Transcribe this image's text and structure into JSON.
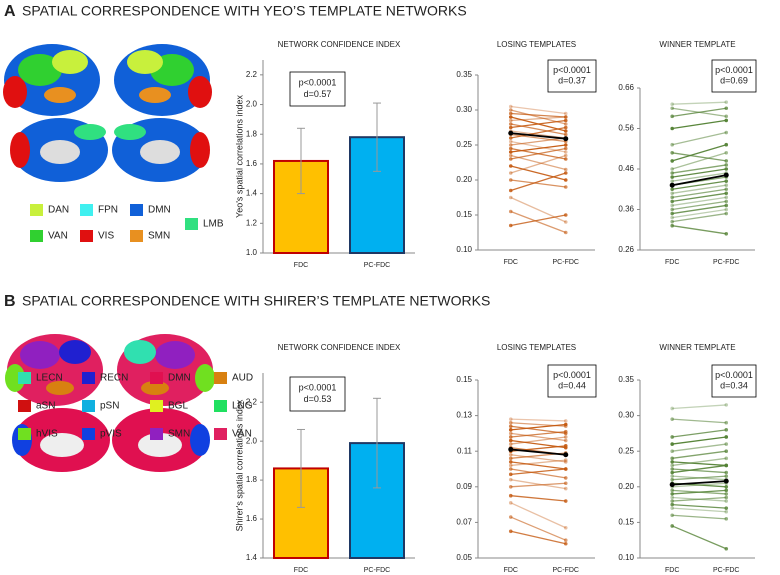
{
  "panels": [
    {
      "letter": "A",
      "title": "SPATIAL CORRESPONDENCE WITH YEO’S TEMPLATE NETWORKS",
      "legend": [
        {
          "name": "DAN",
          "color": "#c8f03c"
        },
        {
          "name": "FPN",
          "color": "#40f0f0"
        },
        {
          "name": "DMN",
          "color": "#1060d8"
        },
        {
          "name": "LMB",
          "color": "#30e080"
        },
        {
          "name": "VAN",
          "color": "#30d030"
        },
        {
          "name": "VIS",
          "color": "#e01010"
        },
        {
          "name": "SMN",
          "color": "#e89020"
        }
      ]
    },
    {
      "letter": "B",
      "title": "SPATIAL CORRESPONDENCE WITH SHIRER’S TEMPLATE NETWORKS",
      "legend": [
        {
          "name": "LECN",
          "color": "#30e0b0"
        },
        {
          "name": "RECN",
          "color": "#2020d0"
        },
        {
          "name": "DMN",
          "color": "#e01050"
        },
        {
          "name": "AUD",
          "color": "#d88010"
        },
        {
          "name": "aSN",
          "color": "#d01010"
        },
        {
          "name": "pSN",
          "color": "#10b0e0"
        },
        {
          "name": "BGL",
          "color": "#e0f020"
        },
        {
          "name": "LNG",
          "color": "#20e060"
        },
        {
          "name": "hVIS",
          "color": "#70e020"
        },
        {
          "name": "pVIS",
          "color": "#1040e0"
        },
        {
          "name": "SMN",
          "color": "#9020c0"
        },
        {
          "name": "VAN",
          "color": "#e02060"
        }
      ]
    }
  ],
  "chart_data": [
    {
      "type": "bar",
      "title": "NETWORK CONFIDENCE INDEX",
      "ylabel": "Yeo's spatial correlations index",
      "categories": [
        "FDC",
        "PC-FDC"
      ],
      "values": [
        1.62,
        1.78
      ],
      "errors": [
        0.22,
        0.23
      ],
      "colors": [
        "#ffc000",
        "#00b0f0"
      ],
      "edge_colors": [
        "#c00000",
        "#1f3864"
      ],
      "ylim": [
        1.0,
        2.3
      ],
      "yticks": [
        {
          "value": 1.0,
          "label": "1.0"
        },
        1.2,
        1.4,
        1.6,
        1.8,
        {
          "value": 2.0,
          "label": "2.0"
        },
        2.2
      ],
      "annotation": [
        "p<0.0001",
        "d=0.57"
      ]
    },
    {
      "type": "line",
      "title": "LOSING TEMPLATES",
      "categories": [
        "FDC",
        "PC-FDC"
      ],
      "color": "#c55a11",
      "mean_color": "#000000",
      "pairs": [
        [
          0.305,
          0.295
        ],
        [
          0.3,
          0.28
        ],
        [
          0.295,
          0.29
        ],
        [
          0.29,
          0.27
        ],
        [
          0.285,
          0.29
        ],
        [
          0.28,
          0.265
        ],
        [
          0.275,
          0.285
        ],
        [
          0.27,
          0.26
        ],
        [
          0.265,
          0.255
        ],
        [
          0.26,
          0.275
        ],
        [
          0.255,
          0.24
        ],
        [
          0.25,
          0.26
        ],
        [
          0.245,
          0.23
        ],
        [
          0.24,
          0.25
        ],
        [
          0.235,
          0.215
        ],
        [
          0.23,
          0.245
        ],
        [
          0.22,
          0.2
        ],
        [
          0.21,
          0.235
        ],
        [
          0.2,
          0.19
        ],
        [
          0.185,
          0.21
        ],
        [
          0.175,
          0.14
        ],
        [
          0.155,
          0.125
        ],
        [
          0.135,
          0.15
        ]
      ],
      "mean": [
        0.267,
        0.259
      ],
      "ylim": [
        0.1,
        0.35
      ],
      "yticks": [
        {
          "value": 0.1,
          "label": "0.10"
        },
        0.15,
        {
          "value": 0.2,
          "label": "0.20"
        },
        0.25,
        {
          "value": 0.3,
          "label": "0.30"
        },
        0.35
      ],
      "annotation": [
        "p<0.0001",
        "d=0.37"
      ]
    },
    {
      "type": "line",
      "title": "WINNER TEMPLATE",
      "categories": [
        "FDC",
        "PC-FDC"
      ],
      "color": "#548235",
      "mean_color": "#000000",
      "pairs": [
        [
          0.62,
          0.625
        ],
        [
          0.61,
          0.59
        ],
        [
          0.59,
          0.61
        ],
        [
          0.56,
          0.58
        ],
        [
          0.52,
          0.55
        ],
        [
          0.5,
          0.48
        ],
        [
          0.48,
          0.52
        ],
        [
          0.46,
          0.5
        ],
        [
          0.45,
          0.47
        ],
        [
          0.44,
          0.46
        ],
        [
          0.43,
          0.45
        ],
        [
          0.42,
          0.44
        ],
        [
          0.41,
          0.43
        ],
        [
          0.4,
          0.42
        ],
        [
          0.39,
          0.41
        ],
        [
          0.38,
          0.4
        ],
        [
          0.37,
          0.39
        ],
        [
          0.36,
          0.38
        ],
        [
          0.35,
          0.37
        ],
        [
          0.34,
          0.36
        ],
        [
          0.33,
          0.35
        ],
        [
          0.32,
          0.3
        ]
      ],
      "mean": [
        0.42,
        0.445
      ],
      "ylim": [
        0.26,
        0.66
      ],
      "yticks": [
        0.26,
        0.36,
        0.46,
        0.56,
        0.66
      ],
      "annotation": [
        "p<0.0001",
        "d=0.69"
      ]
    },
    {
      "type": "bar",
      "title": "NETWORK CONFIDENCE INDEX",
      "ylabel": "Shirer's spatial correlations index",
      "categories": [
        "FDC",
        "PC-FDC"
      ],
      "values": [
        1.86,
        1.99
      ],
      "errors": [
        0.2,
        0.23
      ],
      "colors": [
        "#ffc000",
        "#00b0f0"
      ],
      "edge_colors": [
        "#c00000",
        "#1f3864"
      ],
      "ylim": [
        1.4,
        2.35
      ],
      "yticks": [
        1.4,
        1.6,
        1.8,
        {
          "value": 2.0,
          "label": "2.0"
        },
        2.2
      ],
      "annotation": [
        "p<0.0001",
        "d=0.53"
      ]
    },
    {
      "type": "line",
      "title": "LOSING TEMPLATES",
      "categories": [
        "FDC",
        "PC-FDC"
      ],
      "color": "#c55a11",
      "mean_color": "#000000",
      "pairs": [
        [
          0.128,
          0.127
        ],
        [
          0.126,
          0.124
        ],
        [
          0.124,
          0.12
        ],
        [
          0.122,
          0.125
        ],
        [
          0.12,
          0.116
        ],
        [
          0.118,
          0.121
        ],
        [
          0.116,
          0.112
        ],
        [
          0.114,
          0.118
        ],
        [
          0.112,
          0.108
        ],
        [
          0.11,
          0.113
        ],
        [
          0.108,
          0.104
        ],
        [
          0.106,
          0.109
        ],
        [
          0.104,
          0.1
        ],
        [
          0.102,
          0.105
        ],
        [
          0.1,
          0.095
        ],
        [
          0.097,
          0.1
        ],
        [
          0.094,
          0.089
        ],
        [
          0.09,
          0.092
        ],
        [
          0.085,
          0.082
        ],
        [
          0.081,
          0.067
        ],
        [
          0.073,
          0.06
        ],
        [
          0.065,
          0.058
        ]
      ],
      "mean": [
        0.111,
        0.108
      ],
      "ylim": [
        0.05,
        0.15
      ],
      "yticks": [
        0.05,
        0.07,
        0.09,
        0.11,
        0.13,
        0.15
      ],
      "annotation": [
        "p<0.0001",
        "d=0.44"
      ]
    },
    {
      "type": "line",
      "title": "WINNER TEMPLATE",
      "categories": [
        "FDC",
        "PC-FDC"
      ],
      "color": "#548235",
      "mean_color": "#000000",
      "pairs": [
        [
          0.31,
          0.315
        ],
        [
          0.295,
          0.29
        ],
        [
          0.27,
          0.28
        ],
        [
          0.26,
          0.27
        ],
        [
          0.25,
          0.26
        ],
        [
          0.24,
          0.25
        ],
        [
          0.235,
          0.23
        ],
        [
          0.23,
          0.24
        ],
        [
          0.225,
          0.22
        ],
        [
          0.22,
          0.23
        ],
        [
          0.215,
          0.21
        ],
        [
          0.21,
          0.215
        ],
        [
          0.205,
          0.2
        ],
        [
          0.2,
          0.205
        ],
        [
          0.195,
          0.19
        ],
        [
          0.19,
          0.195
        ],
        [
          0.185,
          0.18
        ],
        [
          0.18,
          0.185
        ],
        [
          0.175,
          0.17
        ],
        [
          0.17,
          0.165
        ],
        [
          0.16,
          0.155
        ],
        [
          0.145,
          0.113
        ]
      ],
      "mean": [
        0.203,
        0.208
      ],
      "ylim": [
        0.1,
        0.35
      ],
      "yticks": [
        {
          "value": 0.1,
          "label": "0.10"
        },
        0.15,
        {
          "value": 0.2,
          "label": "0.20"
        },
        0.25,
        {
          "value": 0.3,
          "label": "0.30"
        },
        0.35
      ],
      "annotation": [
        "p<0.0001",
        "d=0.34"
      ]
    }
  ]
}
